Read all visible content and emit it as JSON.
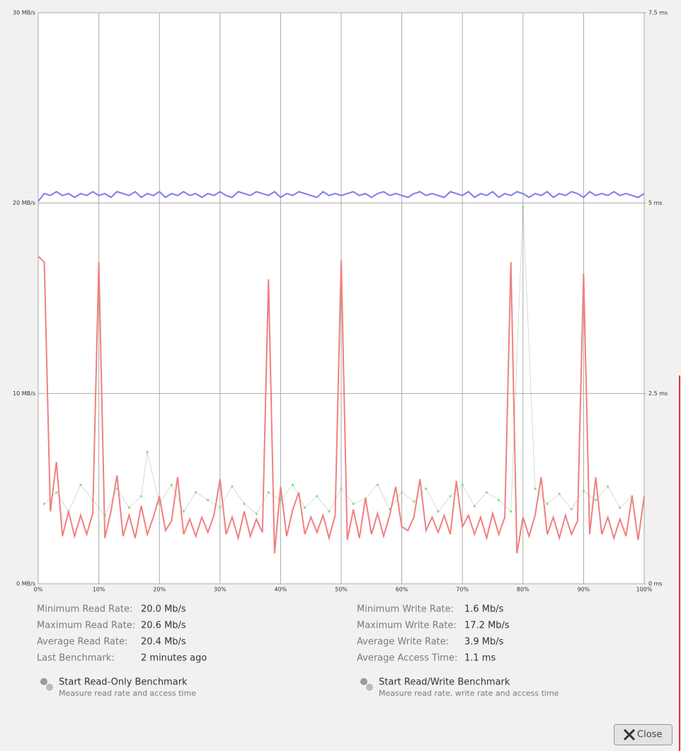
{
  "chart_data": {
    "type": "line",
    "ylim": [
      0,
      30
    ],
    "yticks": [
      {
        "value": 0,
        "label": "0 MB/s"
      },
      {
        "value": 10,
        "label": "10 MB/s"
      },
      {
        "value": 20,
        "label": "20 MB/s"
      },
      {
        "value": 30,
        "label": "30 MB/s"
      }
    ],
    "y2lim": [
      0,
      7.5
    ],
    "y2ticks": [
      {
        "value": 0,
        "label": "0 ms"
      },
      {
        "value": 2.5,
        "label": "2.5 ms"
      },
      {
        "value": 5,
        "label": "5 ms"
      },
      {
        "value": 7.5,
        "label": "7.5 ms"
      }
    ],
    "xlim": [
      0,
      100
    ],
    "xticks": [
      {
        "value": 0,
        "label": "0%"
      },
      {
        "value": 10,
        "label": "10%"
      },
      {
        "value": 20,
        "label": "20%"
      },
      {
        "value": 30,
        "label": "30%"
      },
      {
        "value": 40,
        "label": "40%"
      },
      {
        "value": 50,
        "label": "50%"
      },
      {
        "value": 60,
        "label": "60%"
      },
      {
        "value": 70,
        "label": "70%"
      },
      {
        "value": 80,
        "label": "80%"
      },
      {
        "value": 90,
        "label": "90%"
      },
      {
        "value": 100,
        "label": "100%"
      }
    ],
    "grid": true,
    "x": [
      0,
      1,
      2,
      3,
      4,
      5,
      6,
      7,
      8,
      9,
      10,
      11,
      12,
      13,
      14,
      15,
      16,
      17,
      18,
      19,
      20,
      21,
      22,
      23,
      24,
      25,
      26,
      27,
      28,
      29,
      30,
      31,
      32,
      33,
      34,
      35,
      36,
      37,
      38,
      39,
      40,
      41,
      42,
      43,
      44,
      45,
      46,
      47,
      48,
      49,
      50,
      51,
      52,
      53,
      54,
      55,
      56,
      57,
      58,
      59,
      60,
      61,
      62,
      63,
      64,
      65,
      66,
      67,
      68,
      69,
      70,
      71,
      72,
      73,
      74,
      75,
      76,
      77,
      78,
      79,
      80,
      81,
      82,
      83,
      84,
      85,
      86,
      87,
      88,
      89,
      90,
      91,
      92,
      93,
      94,
      95,
      96,
      97,
      98,
      99,
      100
    ],
    "series": [
      {
        "color": "#7b7bf0",
        "values": [
          20.1,
          20.5,
          20.4,
          20.6,
          20.4,
          20.5,
          20.3,
          20.5,
          20.4,
          20.6,
          20.4,
          20.5,
          20.3,
          20.6,
          20.5,
          20.4,
          20.6,
          20.3,
          20.5,
          20.4,
          20.6,
          20.3,
          20.5,
          20.4,
          20.6,
          20.4,
          20.5,
          20.3,
          20.5,
          20.4,
          20.6,
          20.4,
          20.3,
          20.6,
          20.5,
          20.4,
          20.6,
          20.5,
          20.4,
          20.6,
          20.3,
          20.5,
          20.4,
          20.6,
          20.5,
          20.4,
          20.3,
          20.6,
          20.4,
          20.5,
          20.4,
          20.5,
          20.6,
          20.4,
          20.5,
          20.3,
          20.5,
          20.6,
          20.4,
          20.5,
          20.4,
          20.3,
          20.5,
          20.6,
          20.4,
          20.5,
          20.4,
          20.3,
          20.6,
          20.5,
          20.4,
          20.6,
          20.3,
          20.5,
          20.4,
          20.6,
          20.3,
          20.5,
          20.4,
          20.6,
          20.5,
          20.3,
          20.5,
          20.4,
          20.6,
          20.3,
          20.5,
          20.4,
          20.6,
          20.5,
          20.3,
          20.6,
          20.4,
          20.5,
          20.4,
          20.6,
          20.4,
          20.5,
          20.4,
          20.3,
          20.5
        ]
      },
      {
        "color": "#f08080",
        "values": [
          17.2,
          16.9,
          3.8,
          6.4,
          2.5,
          3.8,
          2.5,
          3.6,
          2.6,
          3.7,
          16.9,
          2.4,
          3.8,
          5.7,
          2.5,
          3.6,
          2.4,
          4.1,
          2.6,
          3.5,
          4.6,
          2.8,
          3.3,
          5.6,
          2.6,
          3.4,
          2.5,
          3.5,
          2.7,
          3.6,
          5.5,
          2.6,
          3.5,
          2.4,
          3.8,
          2.5,
          3.4,
          2.7,
          16.0,
          1.6,
          5.1,
          2.5,
          3.9,
          4.8,
          2.6,
          3.5,
          2.7,
          3.6,
          2.4,
          3.6,
          17.0,
          2.3,
          3.9,
          2.4,
          4.5,
          2.6,
          3.7,
          2.5,
          3.6,
          5.1,
          3.0,
          2.8,
          3.5,
          5.5,
          2.8,
          3.5,
          2.7,
          3.6,
          2.6,
          5.4,
          3.0,
          3.6,
          2.6,
          3.5,
          2.4,
          3.7,
          2.6,
          3.5,
          16.9,
          1.6,
          3.5,
          2.5,
          3.6,
          5.6,
          2.6,
          3.5,
          2.4,
          3.6,
          2.6,
          3.3,
          16.3,
          2.6,
          5.6,
          2.6,
          3.5,
          2.4,
          3.4,
          2.5,
          4.6,
          2.3,
          4.6
        ]
      },
      {
        "type": "scatter",
        "axis": "y2",
        "color": "#7ee07e",
        "x": [
          1,
          3,
          5,
          7,
          9,
          11,
          13,
          15,
          17,
          18,
          20,
          22,
          24,
          26,
          28,
          30,
          32,
          34,
          36,
          38,
          40,
          42,
          44,
          46,
          48,
          50,
          52,
          54,
          56,
          58,
          60,
          62,
          64,
          66,
          68,
          70,
          72,
          74,
          76,
          78,
          80,
          82,
          84,
          86,
          88,
          90,
          92,
          94,
          96,
          98
        ],
        "values": [
          1.05,
          1.2,
          0.95,
          1.3,
          1.1,
          0.9,
          1.25,
          1.0,
          1.15,
          1.73,
          1.05,
          1.3,
          0.95,
          1.2,
          1.1,
          1.0,
          1.28,
          1.05,
          0.92,
          1.2,
          1.1,
          1.3,
          1.0,
          1.15,
          0.95,
          1.25,
          1.05,
          1.12,
          1.3,
          0.98,
          1.2,
          1.08,
          1.25,
          0.95,
          1.15,
          1.3,
          1.02,
          1.2,
          1.1,
          0.95,
          4.95,
          1.25,
          1.05,
          1.18,
          0.98,
          1.22,
          1.1,
          1.28,
          1.0,
          1.15
        ]
      }
    ]
  },
  "stats": {
    "left": [
      {
        "label": "Minimum Read Rate:",
        "value": "20.0 Mb/s"
      },
      {
        "label": "Maximum Read Rate:",
        "value": "20.6 Mb/s"
      },
      {
        "label": "Average Read Rate:",
        "value": "20.4 Mb/s"
      },
      {
        "label": "Last Benchmark:",
        "value": "2 minutes ago"
      }
    ],
    "right": [
      {
        "label": "Minimum Write Rate:",
        "value": "1.6 Mb/s"
      },
      {
        "label": "Maximum Write Rate:",
        "value": "17.2 Mb/s"
      },
      {
        "label": "Average Write Rate:",
        "value": "3.9 Mb/s"
      },
      {
        "label": "Average Access Time:",
        "value": "1.1 ms"
      }
    ]
  },
  "actions": [
    {
      "title": "Start Read-Only Benchmark",
      "subtitle": "Measure read rate and access time"
    },
    {
      "title": "Start Read/Write Benchmark",
      "subtitle": "Measure read rate, write rate and access time"
    }
  ],
  "close_button": "Close"
}
